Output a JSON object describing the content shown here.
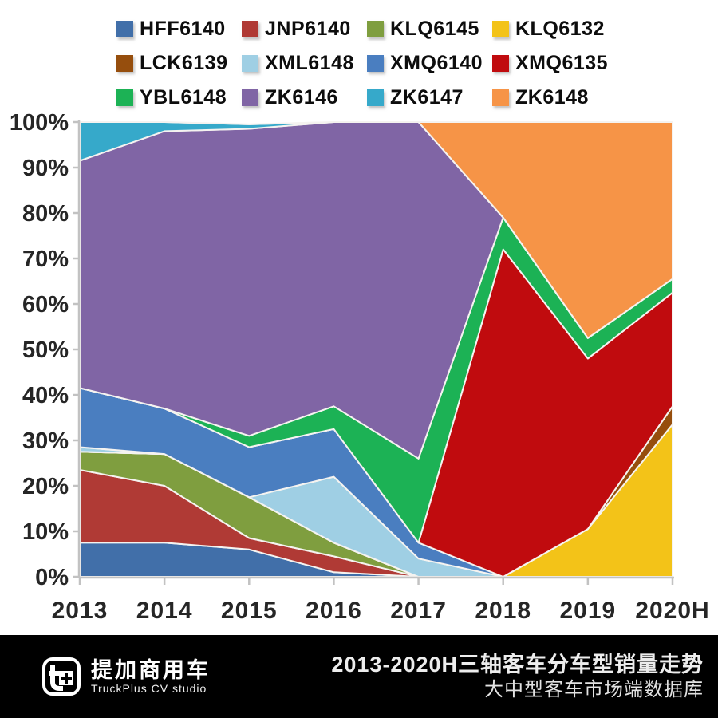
{
  "legend": {
    "items": [
      {
        "label": "HFF6140",
        "color": "#416fa9"
      },
      {
        "label": "JNP6140",
        "color": "#b03a35"
      },
      {
        "label": "KLQ6145",
        "color": "#7f9e3f"
      },
      {
        "label": "KLQ6132",
        "color": "#f3c318"
      },
      {
        "label": "LCK6139",
        "color": "#964e0d"
      },
      {
        "label": "XML6148",
        "color": "#9fcfe4"
      },
      {
        "label": "XMQ6140",
        "color": "#4a7ec0"
      },
      {
        "label": "XMQ6135",
        "color": "#c00b0e"
      },
      {
        "label": "YBL6148",
        "color": "#1cb255"
      },
      {
        "label": "ZK6146",
        "color": "#8065a5"
      },
      {
        "label": "ZK6147",
        "color": "#36a9ca"
      },
      {
        "label": "ZK6148",
        "color": "#f69447"
      }
    ]
  },
  "chart_data": {
    "type": "area",
    "stacked": true,
    "percent": true,
    "title": "2013-2020H三轴客车分车型销量走势",
    "categories": [
      "2013",
      "2014",
      "2015",
      "2016",
      "2017",
      "2018",
      "2019",
      "2020H"
    ],
    "series": [
      {
        "name": "HFF6140",
        "color": "#416fa9",
        "values": [
          7.5,
          7.5,
          6,
          1,
          0,
          0,
          0,
          0
        ]
      },
      {
        "name": "JNP6140",
        "color": "#b03a35",
        "values": [
          16,
          12.5,
          2.5,
          3.5,
          0,
          0,
          0,
          0
        ]
      },
      {
        "name": "KLQ6145",
        "color": "#7f9e3f",
        "values": [
          4,
          7,
          9,
          3,
          0,
          0,
          0,
          0
        ]
      },
      {
        "name": "KLQ6132",
        "color": "#f3c318",
        "values": [
          0,
          0,
          0,
          0,
          0,
          0,
          10.5,
          33.5
        ]
      },
      {
        "name": "LCK6139",
        "color": "#964e0d",
        "values": [
          0,
          0,
          0,
          0,
          0,
          0,
          0,
          4
        ]
      },
      {
        "name": "XML6148",
        "color": "#9fcfe4",
        "values": [
          1,
          0,
          0,
          14.5,
          4,
          0,
          0,
          0
        ]
      },
      {
        "name": "XMQ6140",
        "color": "#4a7ec0",
        "values": [
          13,
          10,
          11,
          10.5,
          3.5,
          0,
          0,
          0
        ]
      },
      {
        "name": "XMQ6135",
        "color": "#c00b0e",
        "values": [
          0,
          0,
          0,
          0,
          0,
          72,
          37.5,
          25
        ]
      },
      {
        "name": "YBL6148",
        "color": "#1cb255",
        "values": [
          0,
          0,
          2.5,
          5,
          18.5,
          7,
          4.5,
          3
        ]
      },
      {
        "name": "ZK6146",
        "color": "#8065a5",
        "values": [
          50,
          61,
          67.5,
          62.5,
          74,
          0,
          0,
          0
        ]
      },
      {
        "name": "ZK6147",
        "color": "#36a9ca",
        "values": [
          8.5,
          2,
          1,
          0,
          0,
          0,
          0,
          0
        ]
      },
      {
        "name": "ZK6148",
        "color": "#f69447",
        "values": [
          0,
          0,
          0,
          0,
          0,
          21,
          47.5,
          34.5
        ]
      }
    ],
    "xlabel": "",
    "ylabel": "",
    "ylim": [
      0,
      100
    ],
    "y_ticks": [
      "0%",
      "10%",
      "20%",
      "30%",
      "40%",
      "50%",
      "60%",
      "70%",
      "80%",
      "90%",
      "100%"
    ],
    "grid": false,
    "legend_position": "top"
  },
  "footer": {
    "title_line1": "2013-2020H三轴客车分车型销量走势",
    "title_line2": "大中型客车市场端数据库",
    "logo": {
      "cn": "提加商用车",
      "en": "TruckPlus CV studio"
    }
  }
}
